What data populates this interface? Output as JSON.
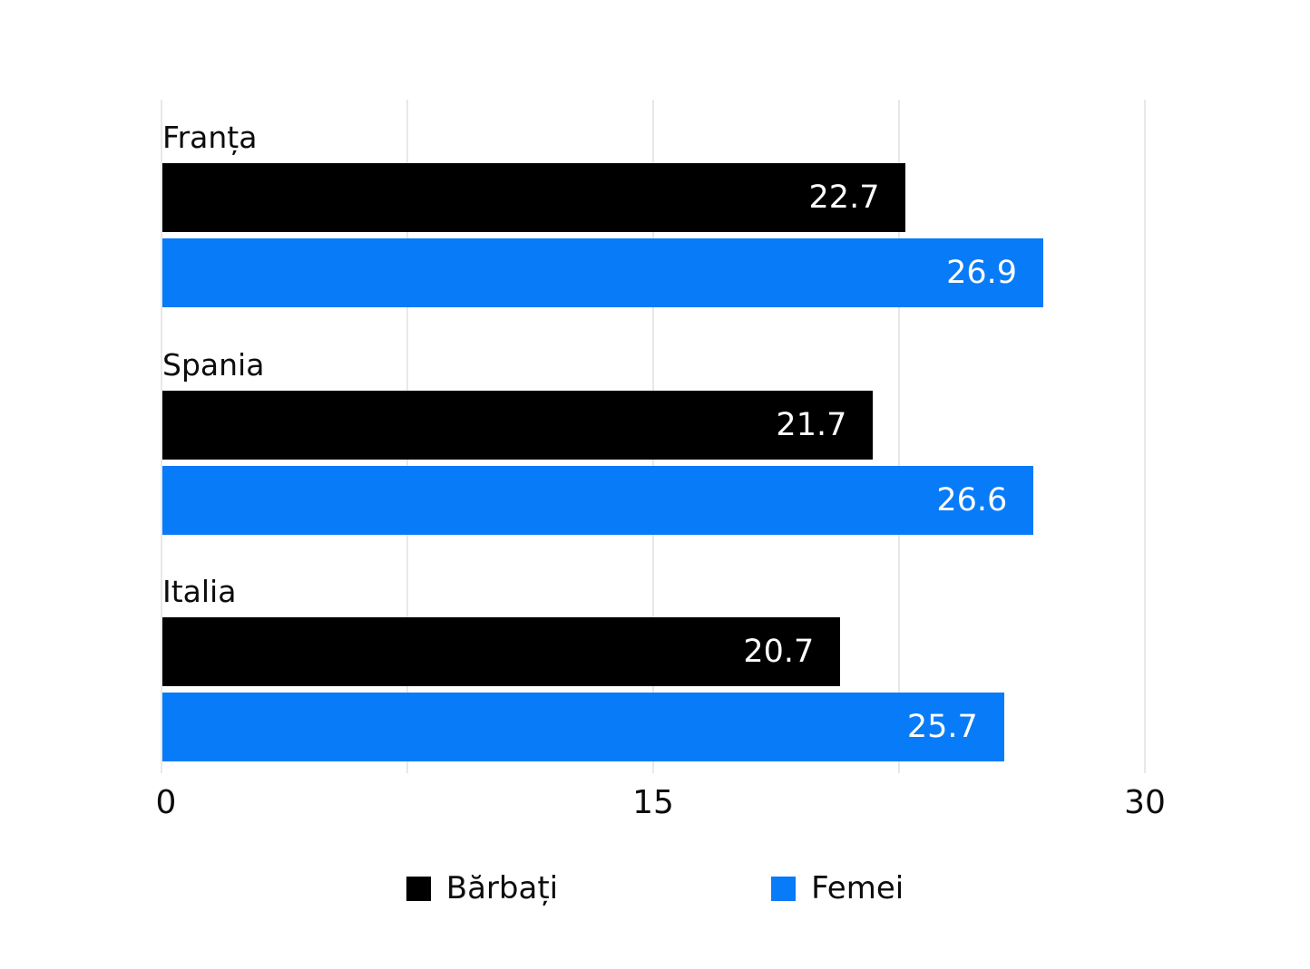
{
  "chart_data": {
    "type": "bar",
    "orientation": "horizontal",
    "categories": [
      "Franța",
      "Spania",
      "Italia"
    ],
    "series": [
      {
        "name": "Bărbați",
        "color": "#000000",
        "values": [
          22.7,
          21.7,
          20.7
        ]
      },
      {
        "name": "Femei",
        "color": "#087bf8",
        "values": [
          26.9,
          26.6,
          25.7
        ]
      }
    ],
    "xlim": [
      0,
      30
    ],
    "x_ticks": [
      "0",
      "15",
      "30"
    ],
    "gridline_step": 7.5,
    "grid": "vertical",
    "gridline_color": "#e8e8e8",
    "background_color": "#ffffff",
    "value_label_position": "inside-end",
    "value_label_color": "#ffffff",
    "legend_position": "bottom"
  }
}
